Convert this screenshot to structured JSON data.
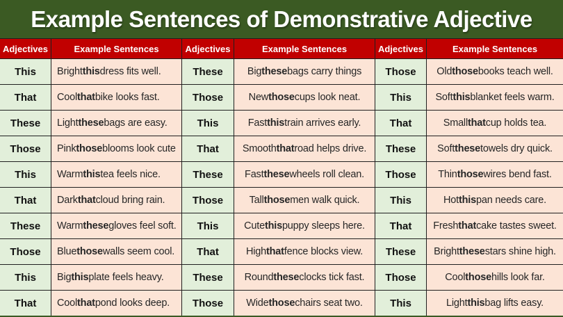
{
  "title": "Example Sentences of Demonstrative Adjective",
  "colors": {
    "title_bg": "#3B5A23",
    "header_bg": "#C10000",
    "header_text": "#FFFFFF",
    "adjective_cell_bg": "#E2EFDA",
    "sentence_cell_bg": "#FCE4D6",
    "border": "#1F1F1F",
    "body_text": "#262626"
  },
  "groups": [
    {
      "adjective_header": "Adjectives",
      "sentence_header": "Example Sentences",
      "rows": [
        {
          "adj": "This",
          "pre": "Bright ",
          "word": "this",
          "post": " dress fits well."
        },
        {
          "adj": "That",
          "pre": "Cool ",
          "word": "that",
          "post": " bike looks fast."
        },
        {
          "adj": "These",
          "pre": "Light ",
          "word": "these",
          "post": " bags are easy."
        },
        {
          "adj": "Those",
          "pre": "Pink ",
          "word": "those",
          "post": " blooms look cute"
        },
        {
          "adj": "This",
          "pre": "Warm ",
          "word": "this",
          "post": " tea feels nice."
        },
        {
          "adj": "That",
          "pre": "Dark ",
          "word": "that",
          "post": " cloud bring rain."
        },
        {
          "adj": "These",
          "pre": "Warm ",
          "word": "these",
          "post": " gloves feel soft."
        },
        {
          "adj": "Those",
          "pre": "Blue ",
          "word": "those",
          "post": " walls seem cool."
        },
        {
          "adj": "This",
          "pre": "Big ",
          "word": "this",
          "post": " plate feels heavy."
        },
        {
          "adj": "That",
          "pre": "Cool ",
          "word": "that",
          "post": " pond looks deep."
        }
      ]
    },
    {
      "adjective_header": "Adjectives",
      "sentence_header": "Example Sentences",
      "rows": [
        {
          "adj": "These",
          "pre": "Big ",
          "word": "these",
          "post": " bags carry things"
        },
        {
          "adj": "Those",
          "pre": "New ",
          "word": "those",
          "post": " cups look neat."
        },
        {
          "adj": "This",
          "pre": "Fast ",
          "word": "this",
          "post": " train arrives early."
        },
        {
          "adj": "That",
          "pre": "Smooth ",
          "word": "that",
          "post": " road helps drive."
        },
        {
          "adj": "These",
          "pre": "Fast ",
          "word": "these",
          "post": " wheels roll clean."
        },
        {
          "adj": "Those",
          "pre": "Tall ",
          "word": "those",
          "post": " men walk quick."
        },
        {
          "adj": "This",
          "pre": "Cute ",
          "word": "this",
          "post": " puppy sleeps here."
        },
        {
          "adj": "That",
          "pre": "High ",
          "word": "that",
          "post": " fence blocks view."
        },
        {
          "adj": "These",
          "pre": "Round ",
          "word": "these",
          "post": " clocks tick fast."
        },
        {
          "adj": "Those",
          "pre": "Wide ",
          "word": "those",
          "post": " chairs seat two."
        }
      ]
    },
    {
      "adjective_header": "Adjectives",
      "sentence_header": "Example Sentences",
      "rows": [
        {
          "adj": "Those",
          "pre": "Old ",
          "word": "those",
          "post": " books teach well."
        },
        {
          "adj": "This",
          "pre": "Soft ",
          "word": "this",
          "post": " blanket feels warm."
        },
        {
          "adj": "That",
          "pre": "Small ",
          "word": "that",
          "post": " cup holds tea."
        },
        {
          "adj": "These",
          "pre": "Soft ",
          "word": "these",
          "post": " towels dry quick."
        },
        {
          "adj": "Those",
          "pre": "Thin ",
          "word": "those",
          "post": " wires bend fast."
        },
        {
          "adj": "This",
          "pre": "Hot ",
          "word": "this",
          "post": " pan needs care."
        },
        {
          "adj": "That",
          "pre": "Fresh ",
          "word": "that",
          "post": " cake tastes sweet."
        },
        {
          "adj": "These",
          "pre": "Bright ",
          "word": "these",
          "post": " stars shine high."
        },
        {
          "adj": "Those",
          "pre": "Cool ",
          "word": "those",
          "post": " hills look far."
        },
        {
          "adj": "This",
          "pre": "Light ",
          "word": "this",
          "post": " bag lifts easy."
        }
      ]
    }
  ]
}
